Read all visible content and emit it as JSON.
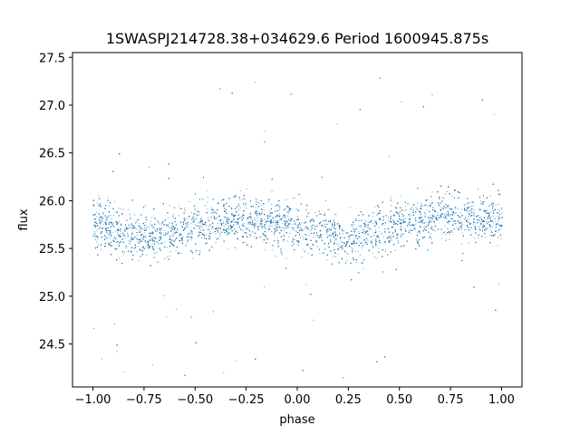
{
  "chart_data": {
    "type": "scatter",
    "title": "1SWASPJ214728.38+034629.6 Period 1600945.875s",
    "xlabel": "phase",
    "ylabel": "flux",
    "xlim": [
      -1.1,
      1.1
    ],
    "ylim": [
      24.05,
      27.55
    ],
    "xticks": [
      -1.0,
      -0.75,
      -0.5,
      -0.25,
      0.0,
      0.25,
      0.5,
      0.75,
      1.0
    ],
    "xtick_labels": [
      "−1.00",
      "−0.75",
      "−0.50",
      "−0.25",
      "0.00",
      "0.25",
      "0.50",
      "0.75",
      "1.00"
    ],
    "yticks": [
      24.5,
      25.0,
      25.5,
      26.0,
      26.5,
      27.0,
      27.5
    ],
    "ytick_labels": [
      "24.5",
      "25.0",
      "25.5",
      "26.0",
      "26.5",
      "27.0",
      "27.5"
    ],
    "grid": false,
    "marker_color": "#1f77b4",
    "series": [
      {
        "x": [
          -1.0,
          -0.75,
          -0.5,
          -0.25,
          0.0,
          0.25,
          0.5,
          0.75,
          1.0
        ],
        "y": [
          25.78,
          25.6,
          25.75,
          25.82,
          25.72,
          25.6,
          25.78,
          25.85,
          25.8
        ]
      }
    ]
  }
}
